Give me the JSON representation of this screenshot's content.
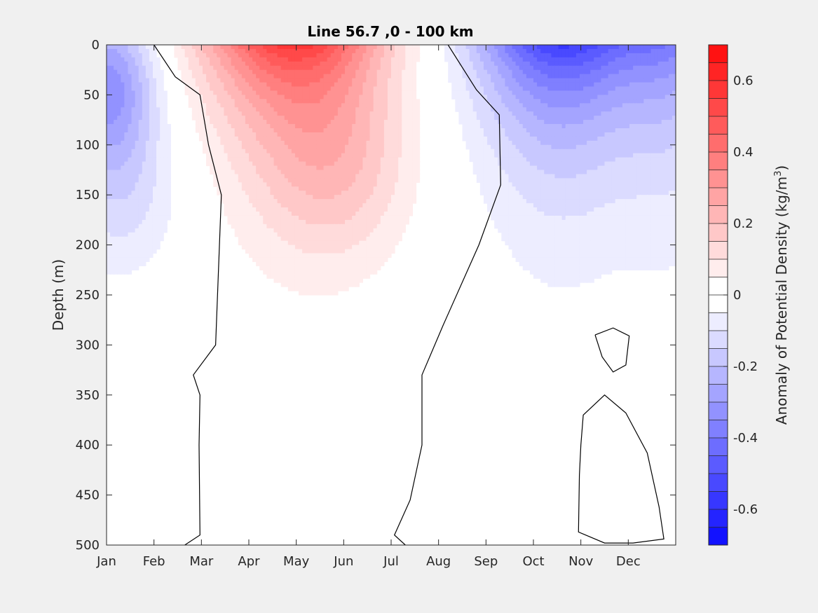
{
  "chart_data": {
    "type": "heatmap",
    "subtype": "filled-contour",
    "title": "Line 56.7 ,0 - 100 km",
    "xlabel": "",
    "ylabel": "Depth (m)",
    "y_reversed": true,
    "ylim": [
      0,
      500
    ],
    "yticks": [
      0,
      50,
      100,
      150,
      200,
      250,
      300,
      350,
      400,
      450,
      500
    ],
    "x_categories": [
      "Jan",
      "Feb",
      "Mar",
      "Apr",
      "May",
      "Jun",
      "Jul",
      "Aug",
      "Sep",
      "Oct",
      "Nov",
      "Dec"
    ],
    "grid": false,
    "colorbar": {
      "label_prefix": "Anomaly of Potential Density (kg/m",
      "label_superscript": "3",
      "label_suffix": ")",
      "clim": [
        -0.7,
        0.7
      ],
      "step": 0.05,
      "ticks": [
        "0.6",
        "0.4",
        "0.2",
        "0",
        "-0.2",
        "-0.4",
        "-0.6"
      ],
      "tick_values": [
        0.6,
        0.4,
        0.2,
        0,
        -0.2,
        -0.4,
        -0.6
      ],
      "colors": {
        "negative_max": "#0000ff",
        "zero": "#ffffff",
        "positive_max": "#ff0000"
      }
    },
    "features": [
      {
        "name": "winter-negative-anomaly",
        "months": "Jan-Feb",
        "min_value": -0.3,
        "core_depth_m": 40,
        "max_depth_m": 200
      },
      {
        "name": "spring-summer-positive-anomaly",
        "months": "Feb-Aug",
        "max_value": 0.5,
        "core_month": "Apr-May",
        "core_depth_m": 5,
        "max_depth_m": 225
      },
      {
        "name": "autumn-negative-anomaly",
        "months": "Aug-Dec",
        "min_value": -0.55,
        "core_month": "Oct",
        "core_depth_m": 5,
        "max_depth_m": 200
      }
    ],
    "zero_contours": [
      {
        "name": "zero-contour-feb-mar",
        "points": [
          [
            1.0,
            0
          ],
          [
            1.45,
            32
          ],
          [
            1.97,
            50
          ],
          [
            2.15,
            100
          ],
          [
            2.42,
            150
          ],
          [
            2.3,
            300
          ],
          [
            1.83,
            330
          ],
          [
            1.97,
            350
          ],
          [
            1.95,
            400
          ],
          [
            1.97,
            490
          ],
          [
            1.65,
            500
          ]
        ]
      },
      {
        "name": "zero-contour-jul-aug",
        "points": [
          [
            7.2,
            0
          ],
          [
            7.8,
            45
          ],
          [
            8.28,
            70
          ],
          [
            8.31,
            140
          ],
          [
            7.85,
            200
          ],
          [
            7.1,
            280
          ],
          [
            6.65,
            330
          ],
          [
            6.65,
            400
          ],
          [
            6.4,
            455
          ],
          [
            6.07,
            490
          ],
          [
            6.3,
            500
          ]
        ]
      },
      {
        "name": "zero-contour-small-loop",
        "points": [
          [
            10.3,
            290
          ],
          [
            10.68,
            283
          ],
          [
            11.02,
            291
          ],
          [
            10.95,
            320
          ],
          [
            10.68,
            327
          ],
          [
            10.45,
            312
          ],
          [
            10.3,
            290
          ]
        ]
      },
      {
        "name": "zero-contour-large-loop",
        "points": [
          [
            10.0,
            400
          ],
          [
            10.05,
            370
          ],
          [
            10.5,
            350
          ],
          [
            10.95,
            368
          ],
          [
            11.4,
            408
          ],
          [
            11.65,
            462
          ],
          [
            11.75,
            494
          ],
          [
            11.1,
            498
          ],
          [
            10.5,
            498
          ],
          [
            9.95,
            487
          ],
          [
            9.97,
            430
          ],
          [
            10.0,
            400
          ]
        ]
      }
    ]
  }
}
